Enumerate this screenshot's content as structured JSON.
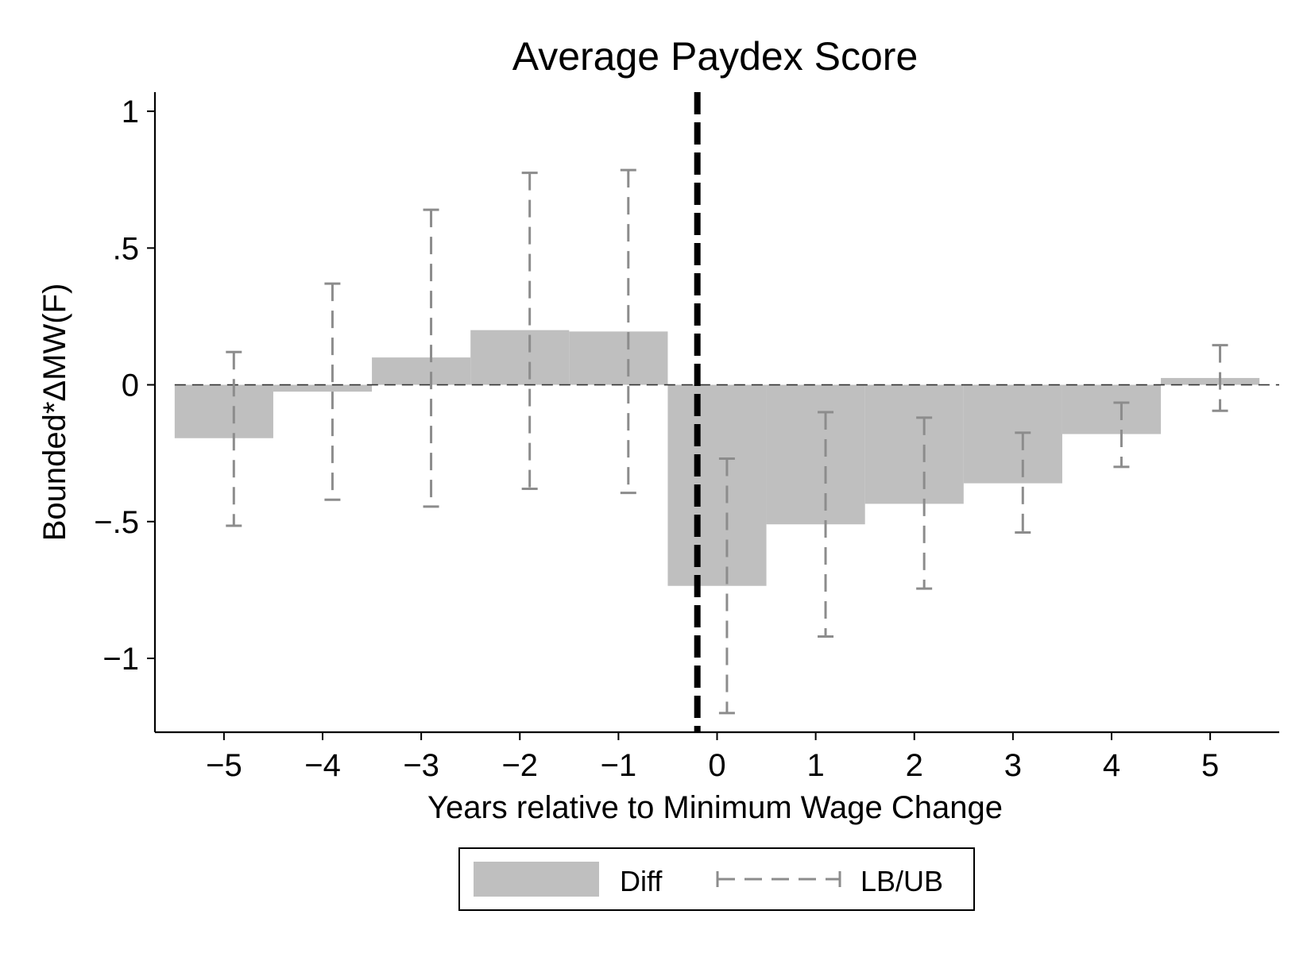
{
  "chart_data": {
    "type": "bar",
    "title": "Average Paydex Score",
    "xlabel": "Years relative to Minimum Wage Change",
    "ylabel": "Bounded*ΔMW(F)",
    "x": [
      -5,
      -4,
      -3,
      -2,
      -1,
      0,
      1,
      2,
      3,
      4,
      5
    ],
    "x_tick_labels": [
      "−5",
      "−4",
      "−3",
      "−2",
      "−1",
      "0",
      "1",
      "2",
      "3",
      "4",
      "5"
    ],
    "y_ticks": [
      1,
      0.5,
      0,
      -0.5,
      -1
    ],
    "y_tick_labels": [
      "1",
      ".5",
      "0",
      "−.5",
      "−1"
    ],
    "xlim": [
      -5.7,
      5.7
    ],
    "ylim": [
      -1.27,
      1.07
    ],
    "series": [
      {
        "name": "Diff",
        "kind": "bar",
        "color": "#bfbfbf",
        "values": [
          -0.195,
          -0.025,
          0.1,
          0.2,
          0.195,
          -0.735,
          -0.51,
          -0.435,
          -0.36,
          -0.18,
          0.025
        ]
      },
      {
        "name": "LB/UB",
        "kind": "error_range",
        "color": "#8c8c8c",
        "lower": [
          -0.515,
          -0.42,
          -0.445,
          -0.38,
          -0.395,
          -1.2,
          -0.92,
          -0.745,
          -0.54,
          -0.3,
          -0.095
        ],
        "upper": [
          0.12,
          0.37,
          0.64,
          0.775,
          0.785,
          -0.27,
          -0.1,
          -0.12,
          -0.175,
          -0.065,
          0.145
        ]
      }
    ],
    "event_line_x": -0.2,
    "zero_line": true,
    "grid": false,
    "legend": {
      "position": "bottom-center",
      "items": [
        {
          "label": "Diff",
          "swatch": "bar"
        },
        {
          "label": "LB/UB",
          "swatch": "dashed-range"
        }
      ]
    }
  }
}
